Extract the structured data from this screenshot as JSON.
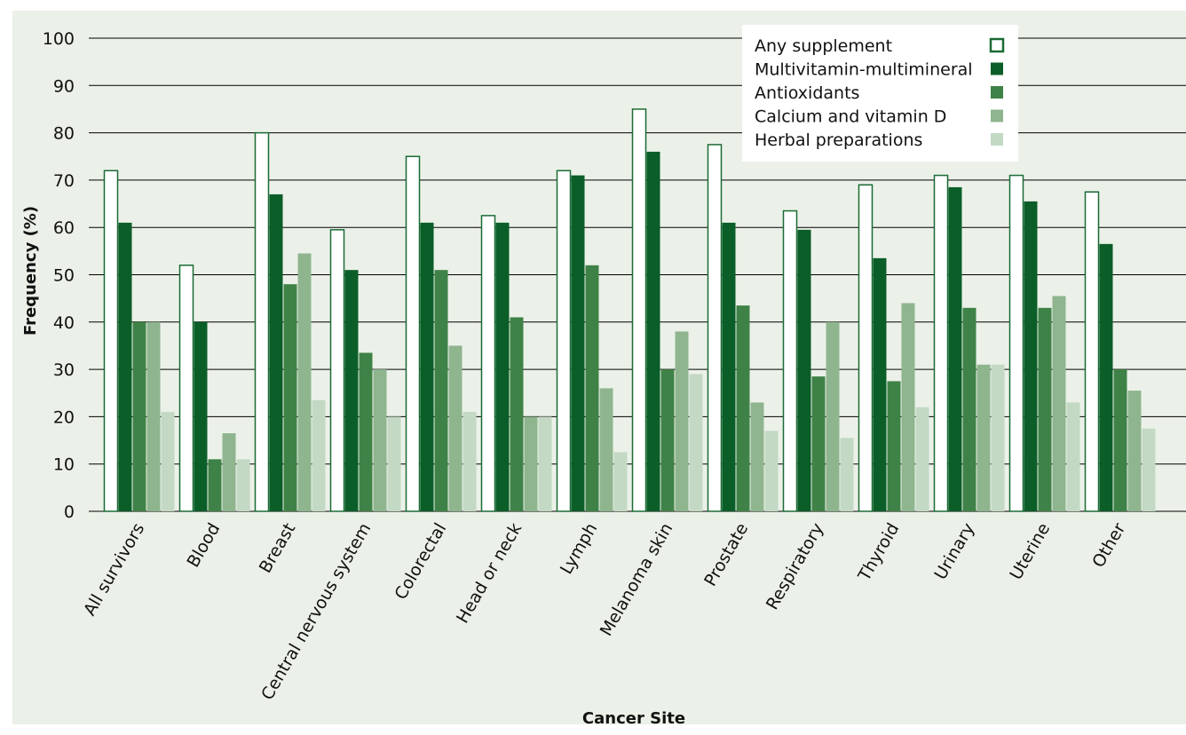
{
  "chart_data": {
    "type": "bar",
    "xlabel": "Cancer Site",
    "ylabel": "Frequency (%)",
    "ylim": [
      0,
      100
    ],
    "yticks": [
      0,
      10,
      20,
      30,
      40,
      50,
      60,
      70,
      80,
      90,
      100
    ],
    "grid": true,
    "legend_position": "top-right",
    "categories": [
      "All survivors",
      "Blood",
      "Breast",
      "Central nervous system",
      "Colorectal",
      "Head or neck",
      "Lymph",
      "Melanoma skin",
      "Prostate",
      "Respiratory",
      "Thyroid",
      "Urinary",
      "Uterine",
      "Other"
    ],
    "series": [
      {
        "name": "Any supplement",
        "fill": "#ffffff",
        "stroke": "#1a6b35",
        "values": [
          72,
          52,
          80,
          59.5,
          75,
          62.5,
          72,
          85,
          77.5,
          63.5,
          69,
          71,
          71,
          67.5
        ]
      },
      {
        "name": "Multivitamin-multimineral",
        "fill": "#0b5e28",
        "stroke": "#0b5e28",
        "values": [
          61,
          40,
          67,
          51,
          61,
          61,
          71,
          76,
          61,
          59.5,
          53.5,
          68.5,
          65.5,
          56.5
        ]
      },
      {
        "name": "Antioxidants",
        "fill": "#3f8247",
        "stroke": "#3f8247",
        "values": [
          40,
          11,
          48,
          33.5,
          51,
          41,
          52,
          30,
          43.5,
          28.5,
          27.5,
          43,
          43,
          30
        ]
      },
      {
        "name": "Calcium and vitamin D",
        "fill": "#8fb58f",
        "stroke": "#8fb58f",
        "values": [
          40,
          16.5,
          54.5,
          30,
          35,
          20,
          26,
          38,
          23,
          40,
          44,
          31,
          45.5,
          25.5
        ]
      },
      {
        "name": "Herbal preparations",
        "fill": "#c3d9c3",
        "stroke": "#c3d9c3",
        "values": [
          21,
          11,
          23.5,
          20,
          21,
          20,
          12.5,
          29,
          17,
          15.5,
          22,
          31,
          23,
          17.5
        ]
      }
    ]
  },
  "colors": {
    "background": "#ebf1e8",
    "gridline": "#000000"
  }
}
